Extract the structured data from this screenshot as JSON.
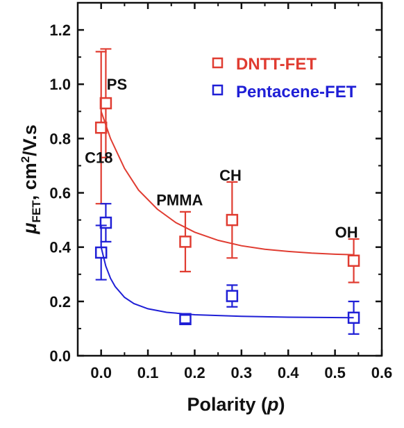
{
  "chart_data": {
    "type": "scatter",
    "xlabel_main": "Polarity (",
    "xlabel_var": "p",
    "xlabel_close": ")",
    "ylabel_mu": "μ",
    "ylabel_sub": "FET",
    "ylabel_rest": ", cm",
    "ylabel_sup": "2",
    "ylabel_tail": "/V.s",
    "xlim": [
      -0.05,
      0.6
    ],
    "ylim": [
      0.0,
      1.3
    ],
    "x_ticks": [
      0.0,
      0.1,
      0.2,
      0.3,
      0.4,
      0.5,
      0.6
    ],
    "x_tick_labels": [
      "0.0",
      "0.1",
      "0.2",
      "0.3",
      "0.4",
      "0.5",
      "0.6"
    ],
    "y_ticks": [
      0.0,
      0.2,
      0.4,
      0.6,
      0.8,
      1.0,
      1.2
    ],
    "y_tick_labels": [
      "0.0",
      "0.2",
      "0.4",
      "0.6",
      "0.8",
      "1.0",
      "1.2"
    ],
    "legend_position": "top-right",
    "series": [
      {
        "name": "DNTT-FET",
        "color": "#e03c31",
        "points": [
          {
            "x": 0.0,
            "y": 0.84,
            "err_low": 0.56,
            "err_high": 1.12
          },
          {
            "x": 0.01,
            "y": 0.93,
            "err_low": 0.73,
            "err_high": 1.13
          },
          {
            "x": 0.18,
            "y": 0.42,
            "err_low": 0.31,
            "err_high": 0.53
          },
          {
            "x": 0.28,
            "y": 0.5,
            "err_low": 0.36,
            "err_high": 0.64
          },
          {
            "x": 0.54,
            "y": 0.35,
            "err_low": 0.27,
            "err_high": 0.43
          }
        ],
        "fit_curve": [
          [
            0.0,
            0.9
          ],
          [
            0.02,
            0.8
          ],
          [
            0.05,
            0.69
          ],
          [
            0.08,
            0.61
          ],
          [
            0.12,
            0.54
          ],
          [
            0.16,
            0.49
          ],
          [
            0.2,
            0.455
          ],
          [
            0.25,
            0.425
          ],
          [
            0.3,
            0.405
          ],
          [
            0.35,
            0.392
          ],
          [
            0.4,
            0.384
          ],
          [
            0.45,
            0.378
          ],
          [
            0.5,
            0.374
          ],
          [
            0.54,
            0.372
          ]
        ]
      },
      {
        "name": "Pentacene-FET",
        "color": "#1f1fd6",
        "points": [
          {
            "x": 0.0,
            "y": 0.38,
            "err_low": 0.28,
            "err_high": 0.48
          },
          {
            "x": 0.01,
            "y": 0.49,
            "err_low": 0.42,
            "err_high": 0.56
          },
          {
            "x": 0.18,
            "y": 0.135,
            "err_low": 0.12,
            "err_high": 0.15
          },
          {
            "x": 0.28,
            "y": 0.22,
            "err_low": 0.18,
            "err_high": 0.26
          },
          {
            "x": 0.54,
            "y": 0.14,
            "err_low": 0.08,
            "err_high": 0.2
          }
        ],
        "fit_curve": [
          [
            0.0,
            0.4
          ],
          [
            0.01,
            0.33
          ],
          [
            0.02,
            0.285
          ],
          [
            0.03,
            0.255
          ],
          [
            0.05,
            0.215
          ],
          [
            0.07,
            0.192
          ],
          [
            0.1,
            0.173
          ],
          [
            0.14,
            0.16
          ],
          [
            0.2,
            0.151
          ],
          [
            0.3,
            0.145
          ],
          [
            0.4,
            0.142
          ],
          [
            0.54,
            0.14
          ]
        ]
      }
    ],
    "annotations": [
      {
        "text": "PS",
        "x": 0.012,
        "y": 1.0
      },
      {
        "text": "C18",
        "x": -0.035,
        "y": 0.73
      },
      {
        "text": "PMMA",
        "x": 0.118,
        "y": 0.575
      },
      {
        "text": "CH",
        "x": 0.253,
        "y": 0.665
      },
      {
        "text": "OH",
        "x": 0.5,
        "y": 0.455
      }
    ]
  }
}
